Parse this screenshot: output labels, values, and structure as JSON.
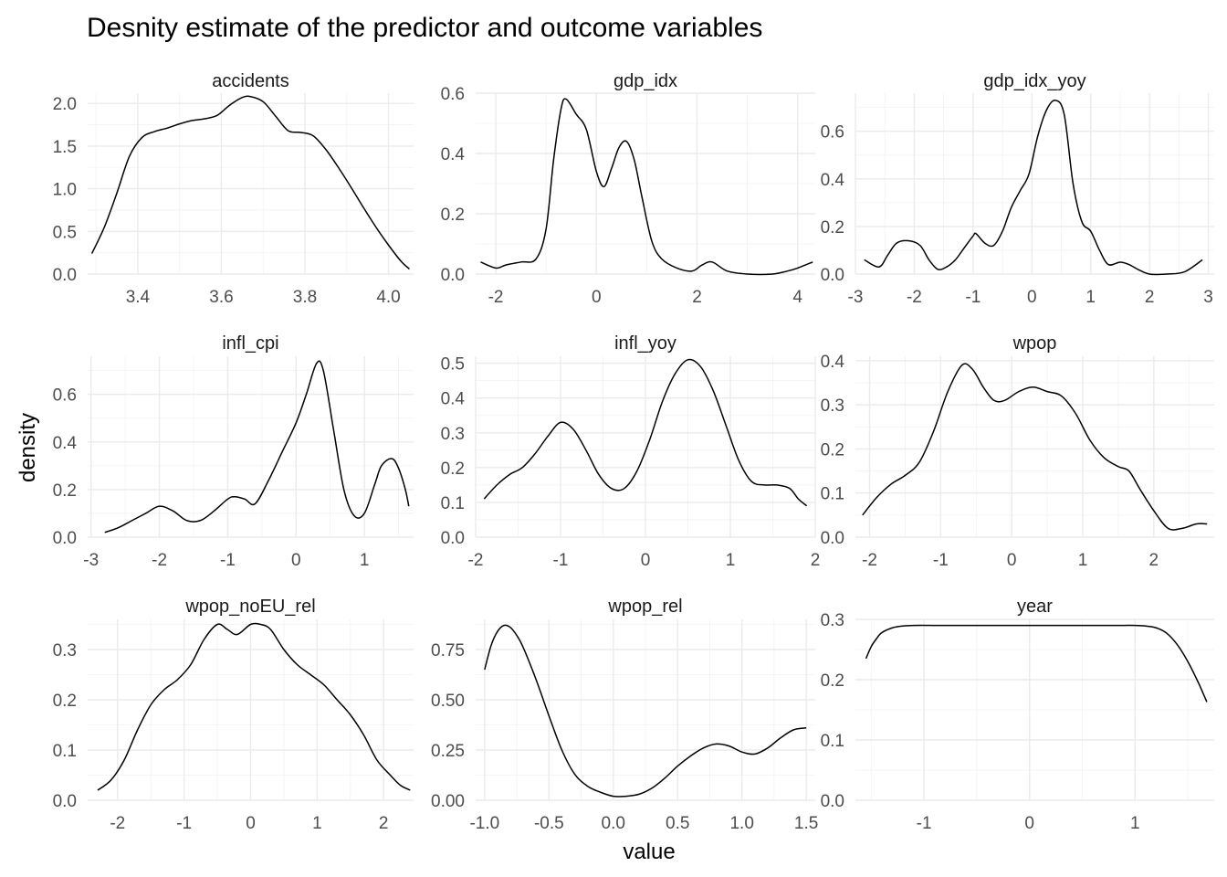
{
  "chart_data": {
    "type": "line",
    "title": "Desnity estimate of the predictor and outcome variables",
    "xlabel": "value",
    "ylabel": "density",
    "grid": true,
    "facets": [
      {
        "name": "accidents",
        "xlim": [
          3.28,
          4.06
        ],
        "ylim": [
          0,
          2.12
        ],
        "xticks": [
          3.4,
          3.6,
          3.8,
          4.0
        ],
        "xtick_labels": [
          "3.4",
          "3.6",
          "3.8",
          "4.0"
        ],
        "yticks": [
          0,
          0.5,
          1.0,
          1.5,
          2.0
        ],
        "ytick_labels": [
          "0.0",
          "0.5",
          "1.0",
          "1.5",
          "2.0"
        ],
        "x": [
          3.29,
          3.32,
          3.35,
          3.38,
          3.41,
          3.44,
          3.47,
          3.5,
          3.53,
          3.56,
          3.59,
          3.62,
          3.65,
          3.67,
          3.7,
          3.73,
          3.76,
          3.79,
          3.82,
          3.85,
          3.88,
          3.91,
          3.94,
          3.97,
          4.0,
          4.03,
          4.05
        ],
        "y": [
          0.24,
          0.55,
          0.95,
          1.38,
          1.6,
          1.67,
          1.71,
          1.76,
          1.8,
          1.82,
          1.86,
          1.98,
          2.07,
          2.08,
          2.02,
          1.85,
          1.68,
          1.66,
          1.62,
          1.46,
          1.25,
          1.02,
          0.78,
          0.55,
          0.34,
          0.15,
          0.06
        ]
      },
      {
        "name": "gdp_idx",
        "xlim": [
          -2.4,
          4.35
        ],
        "ylim": [
          0,
          0.6
        ],
        "xticks": [
          -2,
          0,
          2,
          4
        ],
        "xtick_labels": [
          "-2",
          "0",
          "2",
          "4"
        ],
        "yticks": [
          0,
          0.2,
          0.4,
          0.6
        ],
        "ytick_labels": [
          "0.0",
          "0.2",
          "0.4",
          "0.6"
        ],
        "x": [
          -2.3,
          -2.0,
          -1.8,
          -1.5,
          -1.2,
          -1.0,
          -0.85,
          -0.7,
          -0.6,
          -0.4,
          -0.2,
          0.0,
          0.15,
          0.3,
          0.45,
          0.6,
          0.75,
          0.9,
          1.1,
          1.3,
          1.6,
          1.9,
          2.1,
          2.3,
          2.6,
          3.0,
          3.5,
          3.8,
          4.0,
          4.3
        ],
        "y": [
          0.04,
          0.02,
          0.03,
          0.04,
          0.05,
          0.15,
          0.38,
          0.55,
          0.58,
          0.53,
          0.48,
          0.34,
          0.29,
          0.35,
          0.42,
          0.44,
          0.38,
          0.26,
          0.11,
          0.05,
          0.02,
          0.01,
          0.03,
          0.04,
          0.01,
          0.0,
          0.0,
          0.01,
          0.02,
          0.04
        ]
      },
      {
        "name": "gdp_idx_yoy",
        "xlim": [
          -3.0,
          3.1
        ],
        "ylim": [
          0,
          0.76
        ],
        "xticks": [
          -3,
          -2,
          -1,
          0,
          1,
          2,
          3
        ],
        "xtick_labels": [
          "-3",
          "-2",
          "-1",
          "0",
          "1",
          "2",
          "3"
        ],
        "yticks": [
          0,
          0.2,
          0.4,
          0.6
        ],
        "ytick_labels": [
          "0.0",
          "0.2",
          "0.4",
          "0.6"
        ],
        "x": [
          -2.85,
          -2.6,
          -2.45,
          -2.3,
          -2.1,
          -1.9,
          -1.75,
          -1.6,
          -1.45,
          -1.3,
          -1.15,
          -1.0,
          -0.95,
          -0.8,
          -0.65,
          -0.5,
          -0.35,
          -0.2,
          -0.05,
          0.1,
          0.25,
          0.4,
          0.55,
          0.7,
          0.85,
          1.0,
          1.15,
          1.3,
          1.5,
          1.65,
          1.8,
          2.0,
          2.3,
          2.6,
          2.9
        ],
        "y": [
          0.06,
          0.03,
          0.08,
          0.13,
          0.14,
          0.12,
          0.06,
          0.02,
          0.03,
          0.06,
          0.11,
          0.16,
          0.17,
          0.13,
          0.12,
          0.18,
          0.28,
          0.35,
          0.42,
          0.58,
          0.69,
          0.73,
          0.67,
          0.38,
          0.22,
          0.18,
          0.1,
          0.04,
          0.05,
          0.04,
          0.02,
          0.0,
          0.0,
          0.01,
          0.06
        ]
      },
      {
        "name": "infl_cpi",
        "xlim": [
          -3.05,
          1.72
        ],
        "ylim": [
          0,
          0.76
        ],
        "xticks": [
          -3,
          -2,
          -1,
          0,
          1
        ],
        "xtick_labels": [
          "-3",
          "-2",
          "-1",
          "0",
          "1"
        ],
        "yticks": [
          0,
          0.2,
          0.4,
          0.6
        ],
        "ytick_labels": [
          "0.0",
          "0.2",
          "0.4",
          "0.6"
        ],
        "x": [
          -2.8,
          -2.6,
          -2.4,
          -2.2,
          -2.0,
          -1.8,
          -1.6,
          -1.4,
          -1.2,
          -1.0,
          -0.9,
          -0.75,
          -0.6,
          -0.4,
          -0.2,
          0.0,
          0.15,
          0.3,
          0.4,
          0.55,
          0.7,
          0.85,
          1.0,
          1.15,
          1.25,
          1.4,
          1.5,
          1.6,
          1.65
        ],
        "y": [
          0.02,
          0.04,
          0.07,
          0.1,
          0.13,
          0.11,
          0.07,
          0.07,
          0.11,
          0.16,
          0.17,
          0.16,
          0.14,
          0.24,
          0.36,
          0.48,
          0.6,
          0.73,
          0.7,
          0.45,
          0.2,
          0.09,
          0.1,
          0.22,
          0.3,
          0.33,
          0.29,
          0.2,
          0.13
        ]
      },
      {
        "name": "infl_yoy",
        "xlim": [
          -2.0,
          2.0
        ],
        "ylim": [
          0,
          0.52
        ],
        "xticks": [
          -2,
          -1,
          0,
          1,
          2
        ],
        "xtick_labels": [
          "-2",
          "-1",
          "0",
          "1",
          "2"
        ],
        "yticks": [
          0,
          0.1,
          0.2,
          0.3,
          0.4,
          0.5
        ],
        "ytick_labels": [
          "0.0",
          "0.1",
          "0.2",
          "0.3",
          "0.4",
          "0.5"
        ],
        "x": [
          -1.9,
          -1.75,
          -1.6,
          -1.45,
          -1.3,
          -1.15,
          -1.0,
          -0.85,
          -0.7,
          -0.55,
          -0.4,
          -0.25,
          -0.1,
          0.05,
          0.2,
          0.35,
          0.5,
          0.65,
          0.8,
          0.95,
          1.1,
          1.25,
          1.4,
          1.55,
          1.7,
          1.8,
          1.9
        ],
        "y": [
          0.11,
          0.15,
          0.18,
          0.2,
          0.24,
          0.29,
          0.33,
          0.31,
          0.25,
          0.18,
          0.14,
          0.14,
          0.19,
          0.28,
          0.39,
          0.47,
          0.51,
          0.49,
          0.42,
          0.32,
          0.22,
          0.16,
          0.15,
          0.15,
          0.14,
          0.11,
          0.09
        ]
      },
      {
        "name": "wpop",
        "xlim": [
          -2.2,
          2.85
        ],
        "ylim": [
          0,
          0.41
        ],
        "xticks": [
          -2,
          -1,
          0,
          1,
          2
        ],
        "xtick_labels": [
          "-2",
          "-1",
          "0",
          "1",
          "2"
        ],
        "yticks": [
          0,
          0.1,
          0.2,
          0.3,
          0.4
        ],
        "ytick_labels": [
          "0.0",
          "0.1",
          "0.2",
          "0.3",
          "0.4"
        ],
        "x": [
          -2.1,
          -1.9,
          -1.7,
          -1.5,
          -1.3,
          -1.1,
          -0.9,
          -0.7,
          -0.55,
          -0.4,
          -0.25,
          -0.1,
          0.1,
          0.3,
          0.5,
          0.7,
          0.9,
          1.1,
          1.3,
          1.5,
          1.65,
          1.8,
          2.0,
          2.2,
          2.4,
          2.6,
          2.75
        ],
        "y": [
          0.05,
          0.09,
          0.12,
          0.14,
          0.17,
          0.24,
          0.33,
          0.39,
          0.38,
          0.34,
          0.31,
          0.31,
          0.33,
          0.34,
          0.33,
          0.32,
          0.28,
          0.22,
          0.18,
          0.16,
          0.15,
          0.11,
          0.06,
          0.02,
          0.02,
          0.03,
          0.03
        ]
      },
      {
        "name": "wpop_noEU_rel",
        "xlim": [
          -2.45,
          2.45
        ],
        "ylim": [
          0,
          0.36
        ],
        "xticks": [
          -2,
          -1,
          0,
          1,
          2
        ],
        "xtick_labels": [
          "-2",
          "-1",
          "0",
          "1",
          "2"
        ],
        "yticks": [
          0,
          0.1,
          0.2,
          0.3
        ],
        "ytick_labels": [
          "0.0",
          "0.1",
          "0.2",
          "0.3"
        ],
        "x": [
          -2.3,
          -2.1,
          -1.9,
          -1.7,
          -1.5,
          -1.3,
          -1.1,
          -0.9,
          -0.7,
          -0.5,
          -0.35,
          -0.2,
          0.0,
          0.15,
          0.3,
          0.5,
          0.7,
          0.9,
          1.1,
          1.3,
          1.5,
          1.7,
          1.9,
          2.1,
          2.25,
          2.4
        ],
        "y": [
          0.02,
          0.04,
          0.08,
          0.14,
          0.19,
          0.22,
          0.24,
          0.27,
          0.32,
          0.35,
          0.34,
          0.33,
          0.35,
          0.35,
          0.34,
          0.3,
          0.27,
          0.25,
          0.23,
          0.2,
          0.17,
          0.13,
          0.08,
          0.05,
          0.03,
          0.02
        ]
      },
      {
        "name": "wpop_rel",
        "xlim": [
          -1.07,
          1.57
        ],
        "ylim": [
          0,
          0.9
        ],
        "xticks": [
          -1.0,
          -0.5,
          0.0,
          0.5,
          1.0,
          1.5
        ],
        "xtick_labels": [
          "-1.0",
          "-0.5",
          "0.0",
          "0.5",
          "1.0",
          "1.5"
        ],
        "yticks": [
          0,
          0.25,
          0.5,
          0.75
        ],
        "ytick_labels": [
          "0.00",
          "0.25",
          "0.50",
          "0.75"
        ],
        "x": [
          -1.0,
          -0.95,
          -0.9,
          -0.85,
          -0.8,
          -0.75,
          -0.7,
          -0.6,
          -0.5,
          -0.4,
          -0.3,
          -0.2,
          -0.1,
          0.0,
          0.1,
          0.2,
          0.3,
          0.4,
          0.5,
          0.6,
          0.7,
          0.8,
          0.9,
          1.0,
          1.1,
          1.2,
          1.3,
          1.4,
          1.5
        ],
        "y": [
          0.65,
          0.77,
          0.84,
          0.87,
          0.86,
          0.82,
          0.76,
          0.6,
          0.42,
          0.25,
          0.13,
          0.07,
          0.04,
          0.02,
          0.02,
          0.03,
          0.06,
          0.11,
          0.17,
          0.22,
          0.26,
          0.28,
          0.27,
          0.24,
          0.23,
          0.26,
          0.31,
          0.35,
          0.36
        ]
      },
      {
        "name": "year",
        "xlim": [
          -1.65,
          1.75
        ],
        "ylim": [
          0,
          0.3
        ],
        "xticks": [
          -1,
          0,
          1
        ],
        "xtick_labels": [
          "-1",
          "0",
          "1"
        ],
        "yticks": [
          0,
          0.1,
          0.2,
          0.3
        ],
        "ytick_labels": [
          "0.0",
          "0.1",
          "0.2",
          "0.3"
        ],
        "x": [
          -1.55,
          -1.5,
          -1.45,
          -1.4,
          -1.3,
          -1.2,
          -1.1,
          -0.8,
          -0.4,
          0.0,
          0.4,
          0.8,
          1.0,
          1.1,
          1.2,
          1.3,
          1.4,
          1.5,
          1.6,
          1.68
        ],
        "y": [
          0.235,
          0.255,
          0.268,
          0.278,
          0.286,
          0.289,
          0.29,
          0.29,
          0.29,
          0.29,
          0.29,
          0.29,
          0.29,
          0.289,
          0.286,
          0.277,
          0.258,
          0.23,
          0.195,
          0.163
        ]
      }
    ]
  }
}
